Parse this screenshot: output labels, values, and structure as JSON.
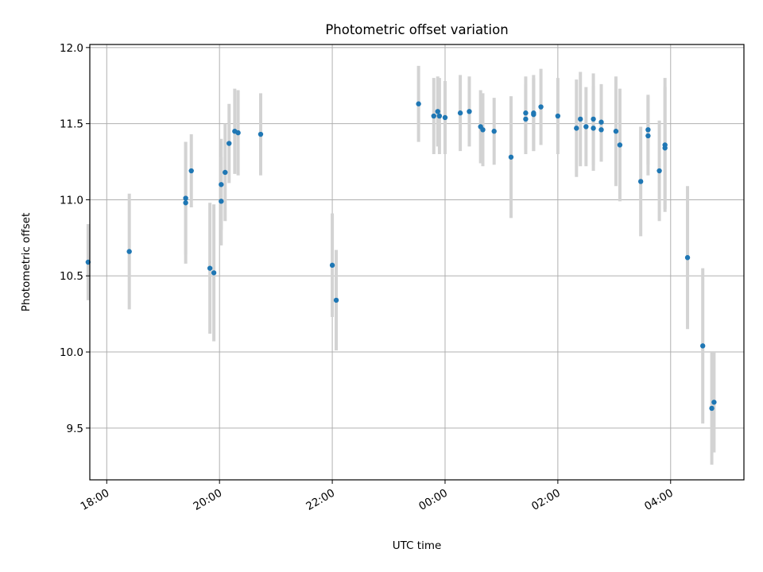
{
  "chart_data": {
    "type": "scatter",
    "title": "Photometric offset variation",
    "xlabel": "UTC time",
    "ylabel": "Photometric offset",
    "x_unit": "hours",
    "xlim": [
      -6.3,
      5.3
    ],
    "ylim": [
      9.16,
      12.02
    ],
    "xticks": [
      {
        "value": -6,
        "label": "18:00"
      },
      {
        "value": -4,
        "label": "20:00"
      },
      {
        "value": -2,
        "label": "22:00"
      },
      {
        "value": 0,
        "label": "00:00"
      },
      {
        "value": 2,
        "label": "02:00"
      },
      {
        "value": 4,
        "label": "04:00"
      }
    ],
    "yticks": [
      {
        "value": 9.5,
        "label": "9.5"
      },
      {
        "value": 10.0,
        "label": "10.0"
      },
      {
        "value": 10.5,
        "label": "10.5"
      },
      {
        "value": 11.0,
        "label": "11.0"
      },
      {
        "value": 11.5,
        "label": "11.5"
      },
      {
        "value": 12.0,
        "label": "12.0"
      }
    ],
    "grid": true,
    "colors": {
      "point": "#1f77b4",
      "errorbar": "#d3d3d3",
      "grid": "#b0b0b0"
    },
    "points": [
      {
        "x": -6.33,
        "y": 10.59,
        "err": 0.25
      },
      {
        "x": -5.6,
        "y": 10.66,
        "err": 0.38
      },
      {
        "x": -4.6,
        "y": 11.01,
        "err": 0.37
      },
      {
        "x": -4.6,
        "y": 10.98,
        "err": 0.4
      },
      {
        "x": -4.5,
        "y": 11.19,
        "err": 0.24
      },
      {
        "x": -4.17,
        "y": 10.55,
        "err": 0.43
      },
      {
        "x": -4.1,
        "y": 10.52,
        "err": 0.45
      },
      {
        "x": -3.97,
        "y": 11.1,
        "err": 0.3
      },
      {
        "x": -3.97,
        "y": 10.99,
        "err": 0.29
      },
      {
        "x": -3.9,
        "y": 11.18,
        "err": 0.32
      },
      {
        "x": -3.83,
        "y": 11.37,
        "err": 0.26
      },
      {
        "x": -3.73,
        "y": 11.45,
        "err": 0.28
      },
      {
        "x": -3.67,
        "y": 11.44,
        "err": 0.28
      },
      {
        "x": -3.27,
        "y": 11.43,
        "err": 0.27
      },
      {
        "x": -2.0,
        "y": 10.57,
        "err": 0.34
      },
      {
        "x": -1.93,
        "y": 10.34,
        "err": 0.33
      },
      {
        "x": -0.47,
        "y": 11.63,
        "err": 0.25
      },
      {
        "x": -0.2,
        "y": 11.55,
        "err": 0.25
      },
      {
        "x": -0.13,
        "y": 11.58,
        "err": 0.23
      },
      {
        "x": -0.1,
        "y": 11.55,
        "err": 0.25
      },
      {
        "x": 0.0,
        "y": 11.54,
        "err": 0.24
      },
      {
        "x": 0.27,
        "y": 11.57,
        "err": 0.25
      },
      {
        "x": 0.43,
        "y": 11.58,
        "err": 0.23
      },
      {
        "x": 0.63,
        "y": 11.48,
        "err": 0.24
      },
      {
        "x": 0.67,
        "y": 11.46,
        "err": 0.24
      },
      {
        "x": 0.87,
        "y": 11.45,
        "err": 0.22
      },
      {
        "x": 1.17,
        "y": 11.28,
        "err": 0.4
      },
      {
        "x": 1.43,
        "y": 11.57,
        "err": 0.24
      },
      {
        "x": 1.43,
        "y": 11.53,
        "err": 0.23
      },
      {
        "x": 1.57,
        "y": 11.57,
        "err": 0.25
      },
      {
        "x": 1.57,
        "y": 11.56,
        "err": 0.24
      },
      {
        "x": 1.7,
        "y": 11.61,
        "err": 0.25
      },
      {
        "x": 2.0,
        "y": 11.55,
        "err": 0.25
      },
      {
        "x": 2.33,
        "y": 11.47,
        "err": 0.32
      },
      {
        "x": 2.4,
        "y": 11.53,
        "err": 0.31
      },
      {
        "x": 2.5,
        "y": 11.48,
        "err": 0.26
      },
      {
        "x": 2.63,
        "y": 11.53,
        "err": 0.3
      },
      {
        "x": 2.63,
        "y": 11.47,
        "err": 0.28
      },
      {
        "x": 2.77,
        "y": 11.51,
        "err": 0.25
      },
      {
        "x": 2.77,
        "y": 11.46,
        "err": 0.21
      },
      {
        "x": 3.03,
        "y": 11.45,
        "err": 0.36
      },
      {
        "x": 3.1,
        "y": 11.36,
        "err": 0.37
      },
      {
        "x": 3.47,
        "y": 11.12,
        "err": 0.36
      },
      {
        "x": 3.6,
        "y": 11.46,
        "err": 0.23
      },
      {
        "x": 3.6,
        "y": 11.42,
        "err": 0.26
      },
      {
        "x": 3.8,
        "y": 11.19,
        "err": 0.33
      },
      {
        "x": 3.9,
        "y": 11.36,
        "err": 0.44
      },
      {
        "x": 3.9,
        "y": 11.34,
        "err": 0.4
      },
      {
        "x": 4.3,
        "y": 10.62,
        "err": 0.47
      },
      {
        "x": 4.57,
        "y": 10.04,
        "err": 0.51
      },
      {
        "x": 4.73,
        "y": 9.63,
        "err": 0.37
      },
      {
        "x": 4.77,
        "y": 9.67,
        "err": 0.33
      }
    ]
  }
}
